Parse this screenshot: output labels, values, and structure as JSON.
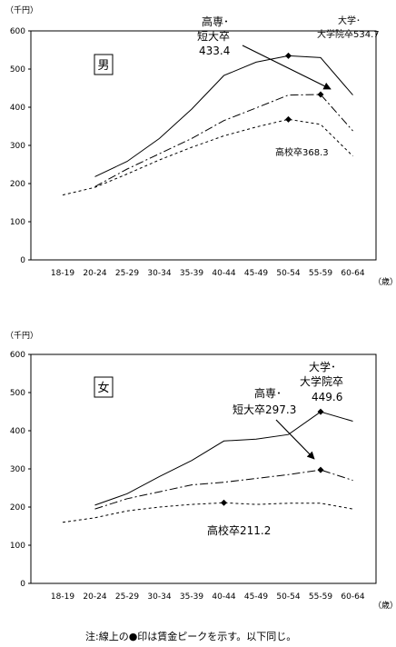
{
  "chart_data": [
    {
      "type": "line",
      "panel_label": "男",
      "y_unit": "（千円）",
      "x_unit": "（歳）",
      "categories": [
        "18-19",
        "20-24",
        "25-29",
        "30-34",
        "35-39",
        "40-44",
        "45-49",
        "50-54",
        "55-59",
        "60-64"
      ],
      "ylim": [
        0,
        600
      ],
      "yticks": [
        0,
        100,
        200,
        300,
        400,
        500,
        600
      ],
      "series": [
        {
          "key": "univ",
          "style": "solid",
          "values": [
            null,
            218,
            258,
            318,
            395,
            483,
            518,
            534.7,
            530,
            432
          ]
        },
        {
          "key": "college",
          "style": "dashdot",
          "values": [
            null,
            192,
            238,
            278,
            318,
            365,
            398,
            432,
            433.4,
            338
          ]
        },
        {
          "key": "high",
          "style": "dashed",
          "values": [
            170,
            190,
            225,
            262,
            295,
            325,
            348,
            368.3,
            355,
            272
          ]
        }
      ],
      "peaks": [
        {
          "series": "univ",
          "index": 7,
          "value": 534.7
        },
        {
          "series": "college",
          "index": 8,
          "value": 433.4
        },
        {
          "series": "high",
          "index": 7,
          "value": 368.3
        }
      ],
      "annotations": {
        "univ_line1": "大学･",
        "univ_line2": "大学院卒534.7",
        "college_line1": "高専･",
        "college_line2": "短大卒",
        "college_value": "433.4",
        "high": "高校卒368.3"
      }
    },
    {
      "type": "line",
      "panel_label": "女",
      "y_unit": "（千円）",
      "x_unit": "（歳）",
      "categories": [
        "18-19",
        "20-24",
        "25-29",
        "30-34",
        "35-39",
        "40-44",
        "45-49",
        "50-54",
        "55-59",
        "60-64"
      ],
      "ylim": [
        0,
        600
      ],
      "yticks": [
        0,
        100,
        200,
        300,
        400,
        500,
        600
      ],
      "series": [
        {
          "key": "univ",
          "style": "solid",
          "values": [
            null,
            205,
            235,
            280,
            322,
            373,
            378,
            390,
            449.6,
            425
          ]
        },
        {
          "key": "college",
          "style": "dashdot",
          "values": [
            null,
            195,
            222,
            240,
            258,
            265,
            275,
            285,
            297.3,
            270
          ]
        },
        {
          "key": "high",
          "style": "dashed",
          "values": [
            160,
            172,
            190,
            200,
            207,
            211.2,
            207,
            210,
            210,
            195
          ]
        }
      ],
      "peaks": [
        {
          "series": "univ",
          "index": 8,
          "value": 449.6
        },
        {
          "series": "college",
          "index": 8,
          "value": 297.3
        },
        {
          "series": "high",
          "index": 5,
          "value": 211.2
        }
      ],
      "annotations": {
        "univ_line1": "大学･",
        "univ_line2": "大学院卒",
        "univ_value": "449.6",
        "college_line1": "高専･",
        "college_line2": "短大卒297.3",
        "high": "高校卒211.2"
      }
    }
  ],
  "note": "注:線上の●印は賃金ピークを示す。以下同じ。"
}
